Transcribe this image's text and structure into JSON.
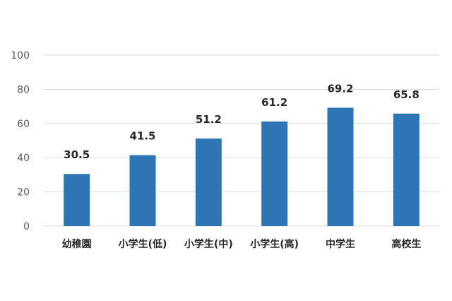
{
  "chart_data": {
    "type": "bar",
    "categories": [
      "幼稚園",
      "小学生(低)",
      "小学生(中)",
      "小学生(高)",
      "中学生",
      "高校生"
    ],
    "values": [
      30.5,
      41.5,
      51.2,
      61.2,
      69.2,
      65.8
    ],
    "data_labels": [
      "30.5",
      "41.5",
      "51.2",
      "61.2",
      "69.2",
      "65.8"
    ],
    "yticks": [
      "0",
      "20",
      "40",
      "60",
      "80",
      "100"
    ],
    "ylim": [
      0,
      100
    ],
    "grid": true,
    "bar_color": "#2E75B6",
    "grid_color": "#D9D9D9"
  }
}
